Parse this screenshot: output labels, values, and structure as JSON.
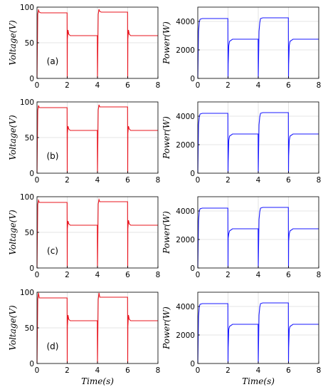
{
  "figure": {
    "xlabel": "Time(s)",
    "voltage_label": "Voltage(V)",
    "power_label": "Power(W)"
  },
  "colors": {
    "voltage": "#e8141e",
    "power": "#1a1aff",
    "grid": "#dcdcdc"
  },
  "chart_data": [
    {
      "panel": "(a)",
      "type": "line",
      "quantity": "voltage",
      "ylabel": "Voltage(V)",
      "xlabel": "",
      "xlim": [
        0,
        8
      ],
      "ylim": [
        0,
        100
      ],
      "xticks": [
        0,
        2,
        4,
        6,
        8
      ],
      "yticks": [
        0,
        50,
        100
      ],
      "grid": true,
      "x": [
        0,
        0.05,
        0.1,
        0.15,
        0.25,
        1.99,
        2.0,
        2.01,
        2.05,
        2.1,
        2.2,
        3.99,
        4.0,
        4.05,
        4.1,
        4.15,
        4.25,
        5.99,
        6.0,
        6.01,
        6.05,
        6.1,
        6.2,
        8
      ],
      "y": [
        0,
        90,
        96,
        93,
        92,
        92,
        0,
        55,
        68,
        62,
        60,
        60,
        0,
        90,
        97,
        94,
        93,
        93,
        0,
        55,
        68,
        62,
        60,
        60
      ]
    },
    {
      "panel": "(a)",
      "type": "line",
      "quantity": "power",
      "ylabel": "Power(W)",
      "xlabel": "",
      "xlim": [
        0,
        8
      ],
      "ylim": [
        0,
        5000
      ],
      "xticks": [
        0,
        2,
        4,
        6,
        8
      ],
      "yticks": [
        0,
        2000,
        4000
      ],
      "grid": true,
      "x": [
        0,
        0.05,
        0.1,
        0.15,
        0.3,
        1.99,
        2.0,
        2.01,
        2.05,
        2.1,
        2.3,
        3.99,
        4.0,
        4.05,
        4.1,
        4.15,
        4.3,
        5.99,
        6.0,
        6.01,
        6.05,
        6.1,
        6.3,
        8
      ],
      "y": [
        0,
        3300,
        3950,
        4150,
        4200,
        4200,
        0,
        1000,
        2300,
        2600,
        2750,
        2750,
        0,
        3300,
        3900,
        4200,
        4250,
        4250,
        0,
        1000,
        2300,
        2600,
        2750,
        2750
      ]
    },
    {
      "panel": "(b)",
      "type": "line",
      "quantity": "voltage",
      "ylabel": "Voltage(V)",
      "xlabel": "",
      "xlim": [
        0,
        8
      ],
      "ylim": [
        0,
        100
      ],
      "xticks": [
        0,
        2,
        4,
        6,
        8
      ],
      "yticks": [
        0,
        50,
        100
      ],
      "grid": true,
      "x": [
        0,
        0.05,
        0.1,
        0.15,
        0.25,
        1.99,
        2.0,
        2.01,
        2.05,
        2.1,
        2.2,
        3.99,
        4.0,
        4.05,
        4.1,
        4.15,
        4.25,
        5.99,
        6.0,
        6.01,
        6.05,
        6.1,
        6.2,
        8
      ],
      "y": [
        0,
        88,
        95,
        92,
        92,
        92,
        0,
        56,
        66,
        62,
        60,
        60,
        0,
        89,
        96,
        93,
        93,
        93,
        0,
        56,
        66,
        62,
        60,
        60
      ]
    },
    {
      "panel": "(b)",
      "type": "line",
      "quantity": "power",
      "ylabel": "Power(W)",
      "xlabel": "",
      "xlim": [
        0,
        8
      ],
      "ylim": [
        0,
        5000
      ],
      "xticks": [
        0,
        2,
        4,
        6,
        8
      ],
      "yticks": [
        0,
        2000,
        4000
      ],
      "grid": true,
      "x": [
        0,
        0.05,
        0.1,
        0.15,
        0.3,
        1.99,
        2.0,
        2.01,
        2.05,
        2.1,
        2.3,
        3.99,
        4.0,
        4.05,
        4.1,
        4.15,
        4.3,
        5.99,
        6.0,
        6.01,
        6.05,
        6.1,
        6.3,
        8
      ],
      "y": [
        0,
        3400,
        3950,
        4150,
        4200,
        4200,
        0,
        800,
        2300,
        2600,
        2750,
        2750,
        0,
        3400,
        3950,
        4200,
        4250,
        4250,
        0,
        1200,
        2300,
        2600,
        2750,
        2750
      ]
    },
    {
      "panel": "(c)",
      "type": "line",
      "quantity": "voltage",
      "ylabel": "Voltage(V)",
      "xlabel": "",
      "xlim": [
        0,
        8
      ],
      "ylim": [
        0,
        100
      ],
      "xticks": [
        0,
        2,
        4,
        6,
        8
      ],
      "yticks": [
        0,
        50,
        100
      ],
      "grid": true,
      "x": [
        0,
        0.05,
        0.1,
        0.15,
        0.25,
        1.99,
        2.0,
        2.01,
        2.05,
        2.1,
        2.2,
        3.99,
        4.0,
        4.05,
        4.1,
        4.15,
        4.25,
        5.99,
        6.0,
        6.01,
        6.05,
        6.1,
        6.2,
        8
      ],
      "y": [
        0,
        89,
        95,
        92,
        92,
        92,
        0,
        55,
        66,
        62,
        60,
        60,
        0,
        90,
        96,
        93,
        93,
        93,
        0,
        55,
        67,
        62,
        60,
        60
      ]
    },
    {
      "panel": "(c)",
      "type": "line",
      "quantity": "power",
      "ylabel": "Power(W)",
      "xlabel": "",
      "xlim": [
        0,
        8
      ],
      "ylim": [
        0,
        5000
      ],
      "xticks": [
        0,
        2,
        4,
        6,
        8
      ],
      "yticks": [
        0,
        2000,
        4000
      ],
      "grid": true,
      "x": [
        0,
        0.05,
        0.1,
        0.15,
        0.3,
        1.99,
        2.0,
        2.01,
        2.05,
        2.1,
        2.3,
        3.99,
        4.0,
        4.05,
        4.1,
        4.15,
        4.3,
        5.99,
        6.0,
        6.01,
        6.05,
        6.1,
        6.3,
        8
      ],
      "y": [
        0,
        3300,
        4000,
        4150,
        4200,
        4200,
        0,
        2100,
        2400,
        2600,
        2750,
        2750,
        0,
        3400,
        3950,
        4200,
        4250,
        4250,
        0,
        1900,
        2400,
        2600,
        2750,
        2750
      ]
    },
    {
      "panel": "(d)",
      "type": "line",
      "quantity": "voltage",
      "ylabel": "Voltage(V)",
      "xlabel": "Time(s)",
      "xlim": [
        0,
        8
      ],
      "ylim": [
        0,
        100
      ],
      "xticks": [
        0,
        2,
        4,
        6,
        8
      ],
      "yticks": [
        0,
        50,
        100
      ],
      "grid": true,
      "x": [
        0,
        0.05,
        0.1,
        0.15,
        0.25,
        1.99,
        2.0,
        2.01,
        2.05,
        2.1,
        2.2,
        3.99,
        4.0,
        4.05,
        4.1,
        4.15,
        4.25,
        5.99,
        6.0,
        6.01,
        6.05,
        6.1,
        6.2,
        8
      ],
      "y": [
        0,
        90,
        99,
        92,
        92,
        92,
        0,
        52,
        68,
        62,
        60,
        60,
        0,
        90,
        99,
        93,
        93,
        93,
        0,
        52,
        68,
        62,
        60,
        60
      ]
    },
    {
      "panel": "(d)",
      "type": "line",
      "quantity": "power",
      "ylabel": "Power(W)",
      "xlabel": "Time(s)",
      "xlim": [
        0,
        8
      ],
      "ylim": [
        0,
        5000
      ],
      "xticks": [
        0,
        2,
        4,
        6,
        8
      ],
      "yticks": [
        0,
        2000,
        4000
      ],
      "grid": true,
      "x": [
        0,
        0.05,
        0.1,
        0.15,
        0.3,
        1.99,
        2.0,
        2.01,
        2.05,
        2.1,
        2.3,
        3.99,
        4.0,
        4.05,
        4.1,
        4.15,
        4.3,
        5.99,
        6.0,
        6.01,
        6.05,
        6.1,
        6.3,
        8
      ],
      "y": [
        0,
        3300,
        4000,
        4150,
        4200,
        4200,
        0,
        1100,
        2400,
        2600,
        2750,
        2750,
        0,
        3400,
        3950,
        4200,
        4250,
        4250,
        0,
        1100,
        2400,
        2600,
        2750,
        2750
      ]
    }
  ]
}
